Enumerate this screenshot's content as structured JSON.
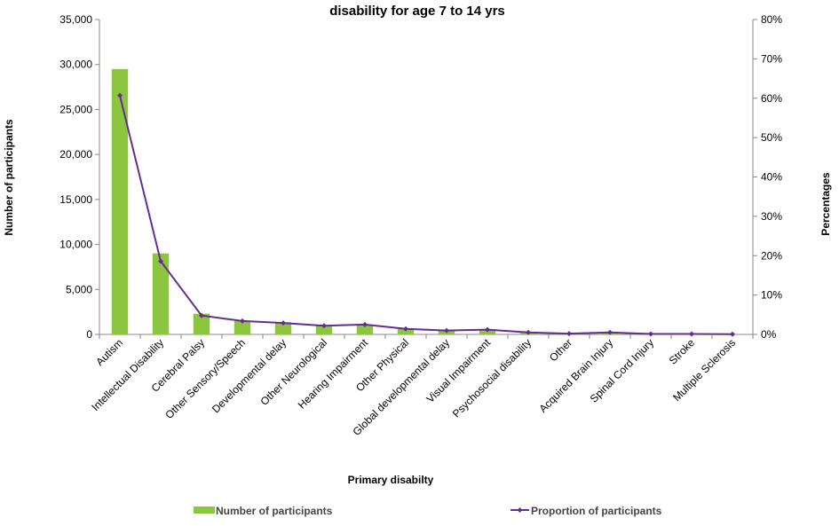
{
  "chart_data": {
    "type": "bar",
    "title": "disability for age 7 to 14 yrs",
    "xlabel": "Primary disabilty",
    "ylabel": "Number of participants",
    "ylabel_right": "Percentages",
    "categories": [
      "Autism",
      "Intellectual Disability",
      "Cerebral Palsy",
      "Other Sensory/Speech",
      "Developmental delay",
      "Other Neurological",
      "Hearing Impairment",
      "Other Physical",
      "Global developmental delay",
      "Visual Impairment",
      "Psychosocial disability",
      "Other",
      "Acquired Brain Injury",
      "Spinal Cord Injury",
      "Stroke",
      "Multiple Sclerosis"
    ],
    "series": [
      {
        "name": "Number of participants",
        "type": "bar",
        "axis": "left",
        "color": "#8cc63f",
        "values": [
          29500,
          9000,
          2300,
          1500,
          1350,
          1000,
          1050,
          650,
          450,
          550,
          200,
          80,
          250,
          50,
          50,
          20
        ]
      },
      {
        "name": "Proportion of participants",
        "type": "line",
        "axis": "right",
        "color": "#662d91",
        "values": [
          60.7,
          18.6,
          4.8,
          3.4,
          2.9,
          2.2,
          2.5,
          1.4,
          1.0,
          1.2,
          0.5,
          0.2,
          0.5,
          0.1,
          0.1,
          0.05
        ]
      }
    ],
    "ylim": [
      0,
      35000
    ],
    "yticks": [
      "0",
      "5,000",
      "10,000",
      "15,000",
      "20,000",
      "25,000",
      "30,000",
      "35,000"
    ],
    "ylim_right": [
      0,
      80
    ],
    "yticks_right": [
      "0%",
      "10%",
      "20%",
      "30%",
      "40%",
      "50%",
      "60%",
      "70%",
      "80%"
    ],
    "grid": false,
    "legend_position": "bottom"
  }
}
